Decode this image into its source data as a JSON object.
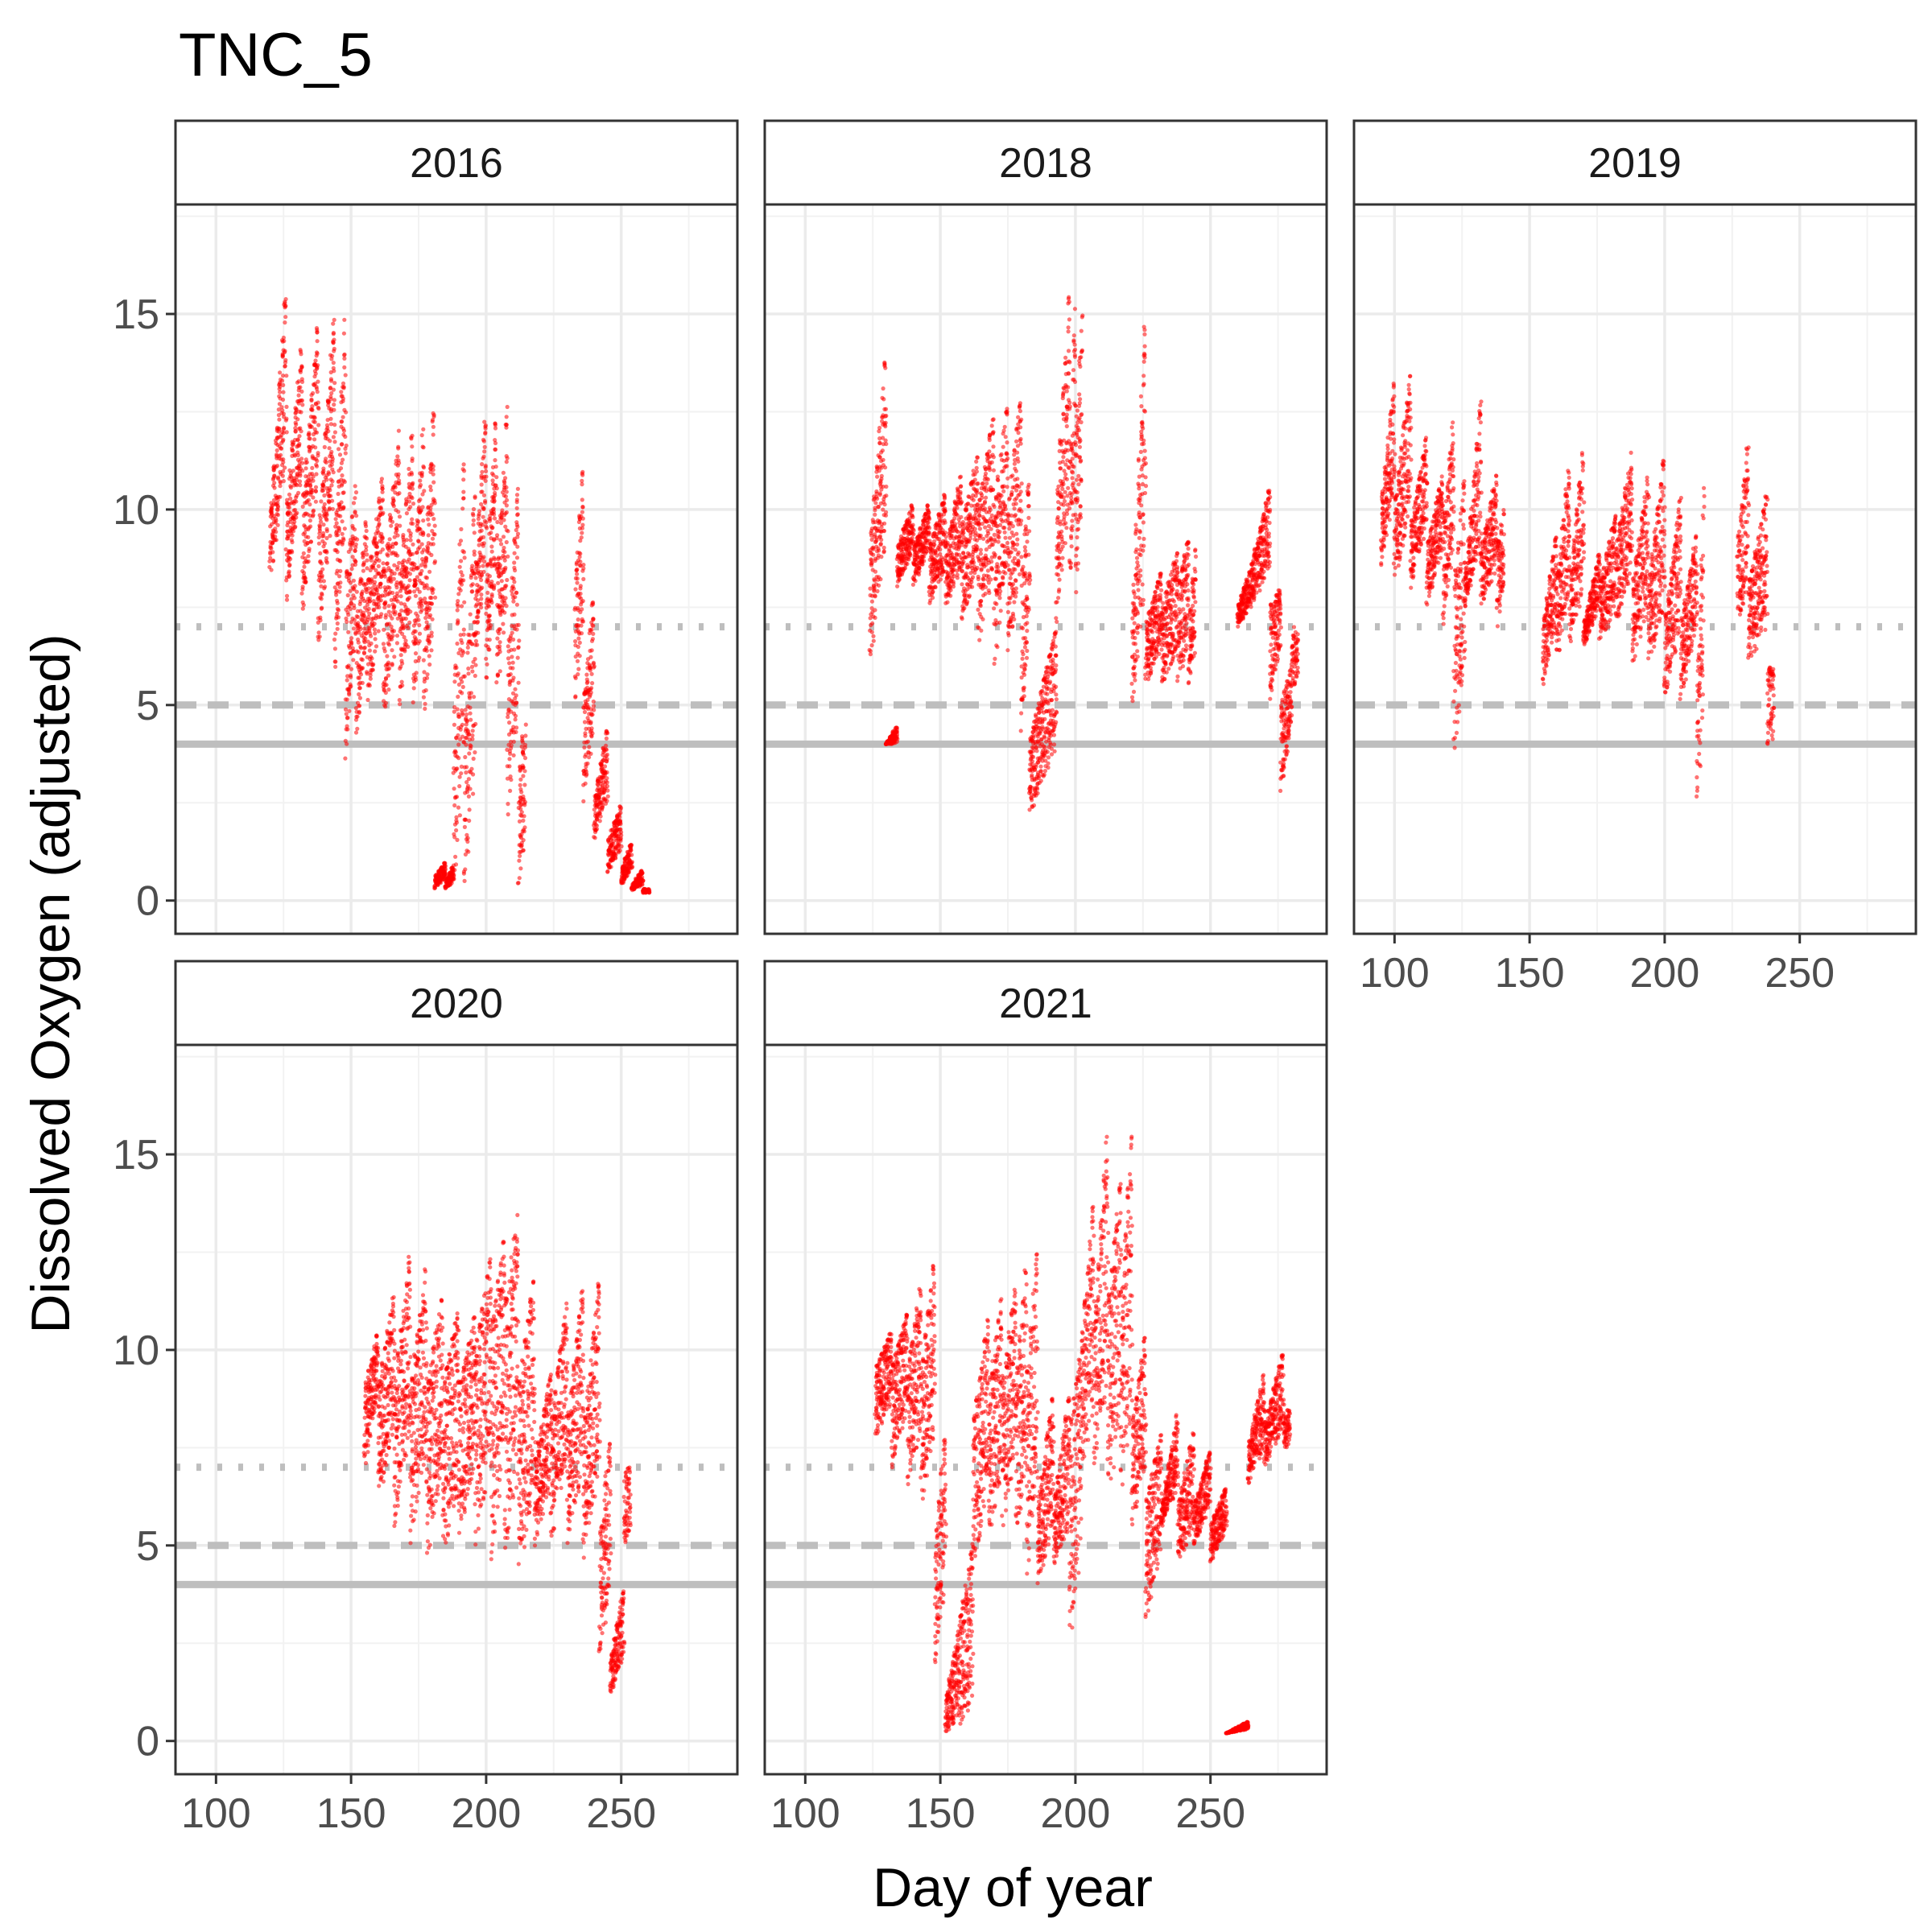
{
  "chart_data": {
    "type": "scatter",
    "title": "TNC_5",
    "xlabel": "Day of year",
    "ylabel": "Dissolved Oxygen (adjusted)",
    "xlim": [
      85,
      293
    ],
    "ylim": [
      -0.85,
      17.8
    ],
    "x_ticks": [
      100,
      150,
      200,
      250
    ],
    "x_tick_labels": [
      "100",
      "150",
      "200",
      "250"
    ],
    "y_ticks": [
      0,
      5,
      10,
      15
    ],
    "y_tick_labels": [
      "0",
      "5",
      "10",
      "15"
    ],
    "grid": true,
    "point_color": "#ff0000",
    "reference_lines": [
      {
        "value": 7,
        "style": "dotted",
        "color": "#bebebe"
      },
      {
        "value": 5,
        "style": "dashed",
        "color": "#bebebe"
      },
      {
        "value": 4,
        "style": "solid",
        "color": "#bebebe"
      }
    ],
    "layout": {
      "ncol": 3,
      "facet_by": "year"
    },
    "facets": [
      {
        "year": "2016",
        "segments": [
          [
            120,
            9.5,
            15.8,
            8.2,
            11
          ],
          [
            126,
            9.8,
            14.5,
            7.5,
            11
          ],
          [
            132,
            10,
            15,
            7,
            11
          ],
          [
            138,
            9.5,
            15.3,
            6.5,
            10.5
          ],
          [
            144,
            9,
            15.5,
            5.5,
            10
          ],
          [
            148,
            8,
            11,
            3.5,
            7
          ],
          [
            152,
            7,
            10,
            4,
            7
          ],
          [
            156,
            8,
            11,
            5,
            7.5
          ],
          [
            162,
            8,
            12.3,
            4.5,
            7
          ],
          [
            168,
            8,
            12.3,
            5,
            7.5
          ],
          [
            173,
            8,
            12.5,
            5,
            7.5
          ],
          [
            177,
            8,
            13,
            4.5,
            7
          ],
          [
            181,
            0.6,
            1,
            0.3,
            0.6
          ],
          [
            185,
            0.5,
            0.9,
            0.3,
            0.5
          ],
          [
            188,
            5,
            12.1,
            0.3,
            4
          ],
          [
            192,
            4,
            11,
            0.5,
            3
          ],
          [
            196,
            8,
            12.8,
            6,
            9
          ],
          [
            200,
            8,
            12.8,
            5.5,
            8.5
          ],
          [
            204,
            8,
            12.9,
            5,
            8
          ],
          [
            208,
            6,
            11,
            2,
            5
          ],
          [
            212,
            3,
            5,
            0.3,
            1.5
          ],
          [
            233,
            8,
            11.6,
            5,
            7
          ],
          [
            236,
            5,
            8,
            2.5,
            4.5
          ],
          [
            240,
            2.5,
            4.5,
            1.5,
            2.5
          ],
          [
            245,
            1.5,
            2.5,
            0.7,
            1.3
          ],
          [
            250,
            0.8,
            1.5,
            0.4,
            0.8
          ],
          [
            254,
            0.4,
            0.8,
            0.25,
            0.4
          ],
          [
            258,
            0.3,
            0.5,
            0.2,
            0.3
          ]
        ]
      },
      {
        "year": "2018",
        "segments": [
          [
            124,
            9,
            14.1,
            6,
            9
          ],
          [
            130,
            4,
            4.5,
            4,
            4
          ],
          [
            134,
            9,
            10.2,
            8,
            9
          ],
          [
            140,
            9,
            10.2,
            8,
            9
          ],
          [
            146,
            9,
            10.5,
            7.5,
            8.5
          ],
          [
            152,
            9,
            11,
            7.5,
            8.5
          ],
          [
            158,
            9.5,
            11.5,
            7,
            8.5
          ],
          [
            164,
            10,
            12.5,
            6.5,
            8.5
          ],
          [
            170,
            10,
            12.8,
            6,
            8.5
          ],
          [
            175,
            10,
            13,
            6,
            8.5
          ],
          [
            180,
            8,
            11,
            4,
            7
          ],
          [
            183,
            4,
            7,
            2,
            4
          ],
          [
            193,
            10,
            15.9,
            7,
            10
          ],
          [
            198,
            10,
            16,
            8,
            10.5
          ],
          [
            200,
            12,
            15,
            7.5,
            10
          ],
          [
            221,
            7,
            15.5,
            5,
            8
          ],
          [
            226,
            7,
            8.5,
            5.5,
            6.5
          ],
          [
            232,
            7.5,
            9,
            5.5,
            6.5
          ],
          [
            238,
            8,
            9.3,
            5.5,
            6.5
          ],
          [
            242,
            7,
            9,
            5.5,
            6.5
          ],
          [
            260,
            7.5,
            8.5,
            7,
            7.5
          ],
          [
            265,
            8.5,
            10.6,
            7.5,
            8.5
          ],
          [
            272,
            7.5,
            8,
            5,
            6.5
          ],
          [
            276,
            5,
            6,
            2.6,
            4.5
          ],
          [
            280,
            7,
            8.5,
            5.5,
            7
          ]
        ]
      },
      {
        "year": "2019",
        "segments": [
          [
            95,
            10,
            13.5,
            8.5,
            10.5
          ],
          [
            100,
            10,
            13.7,
            8,
            10
          ],
          [
            106,
            9.5,
            12,
            8,
            9.5
          ],
          [
            112,
            9,
            11,
            7.5,
            9
          ],
          [
            118,
            9.5,
            12.5,
            7,
            9
          ],
          [
            122,
            8,
            11,
            3.5,
            6
          ],
          [
            126,
            8,
            12.9,
            7.5,
            9
          ],
          [
            132,
            9,
            11,
            7.5,
            8.5
          ],
          [
            138,
            9,
            10,
            7,
            8
          ],
          [
            155,
            7,
            9.5,
            5.5,
            7
          ],
          [
            160,
            8,
            11.5,
            6,
            8
          ],
          [
            165,
            8,
            11.8,
            6.5,
            8
          ],
          [
            170,
            7,
            9,
            6.5,
            7.5
          ],
          [
            176,
            8,
            10,
            6.5,
            7.5
          ],
          [
            182,
            9,
            11.6,
            7,
            8.5
          ],
          [
            188,
            8,
            11,
            6,
            7.5
          ],
          [
            194,
            8,
            11.5,
            6,
            7.5
          ],
          [
            200,
            7,
            10.5,
            5,
            7
          ],
          [
            206,
            7,
            9.5,
            5,
            7
          ],
          [
            212,
            5,
            10.7,
            2.4,
            5
          ],
          [
            227,
            9,
            11.9,
            7,
            8
          ],
          [
            231,
            8,
            10.5,
            6,
            7
          ],
          [
            238,
            6,
            11.3,
            4,
            6
          ]
        ]
      },
      {
        "year": "2020",
        "segments": [
          [
            155,
            9,
            10.5,
            7,
            9
          ],
          [
            160,
            9,
            11.5,
            6,
            8
          ],
          [
            166,
            9,
            12.6,
            5.5,
            8
          ],
          [
            172,
            9,
            12.3,
            5,
            7.5
          ],
          [
            178,
            9,
            11.5,
            4.5,
            7
          ],
          [
            184,
            9,
            11.2,
            4.5,
            6.5
          ],
          [
            190,
            9,
            11,
            5,
            7
          ],
          [
            196,
            10,
            12.5,
            5,
            7
          ],
          [
            202,
            10.5,
            13,
            4.5,
            7
          ],
          [
            207,
            11,
            13.7,
            4.3,
            7
          ],
          [
            212,
            9,
            12,
            4,
            6.5
          ],
          [
            218,
            7,
            9.5,
            5,
            6.5
          ],
          [
            224,
            8,
            11.5,
            5,
            7
          ],
          [
            230,
            8,
            11.8,
            5,
            7
          ],
          [
            236,
            8,
            12,
            4.5,
            7
          ],
          [
            242,
            5,
            8,
            2,
            4
          ],
          [
            246,
            2,
            4,
            1.2,
            2
          ],
          [
            251,
            7,
            10.6,
            5,
            7
          ]
        ]
      },
      {
        "year": "2021",
        "segments": [
          [
            126,
            9.5,
            10.5,
            7.7,
            8.7
          ],
          [
            132,
            9.5,
            11,
            7,
            8.5
          ],
          [
            138,
            9.5,
            11.8,
            6.5,
            8
          ],
          [
            143,
            9.5,
            12.4,
            6,
            8
          ],
          [
            148,
            5,
            8,
            2,
            4
          ],
          [
            152,
            1,
            3,
            0.2,
            0.6
          ],
          [
            157,
            3,
            5,
            0.3,
            1
          ],
          [
            162,
            8,
            11,
            4,
            7
          ],
          [
            168,
            9,
            11.5,
            5,
            7
          ],
          [
            173,
            9,
            11.8,
            5.5,
            7.5
          ],
          [
            178,
            9,
            12.5,
            5,
            7
          ],
          [
            182,
            9,
            12.9,
            4,
            6.5
          ],
          [
            186,
            6,
            9,
            4,
            5.5
          ],
          [
            192,
            6,
            9,
            4.5,
            5.5
          ],
          [
            198,
            8,
            10,
            2.2,
            5
          ],
          [
            202,
            10,
            14,
            6.5,
            8.5
          ],
          [
            207,
            10.5,
            16,
            7,
            9
          ],
          [
            212,
            11,
            14.5,
            6,
            8.5
          ],
          [
            217,
            11,
            15.9,
            6,
            8.5
          ],
          [
            221,
            8,
            10.5,
            5.5,
            7
          ],
          [
            226,
            6,
            8,
            3,
            5
          ],
          [
            232,
            6,
            8.5,
            5.5,
            6.5
          ],
          [
            238,
            6,
            8,
            4.5,
            5.5
          ],
          [
            244,
            6,
            7.5,
            5,
            6
          ],
          [
            250,
            5.5,
            6.5,
            4.5,
            5.5
          ],
          [
            256,
            0.2,
            0.5,
            0.2,
            0.3
          ],
          [
            264,
            7.5,
            9.5,
            6.5,
            7.5
          ],
          [
            270,
            8,
            10,
            7,
            8
          ],
          [
            277,
            8.5,
            11.6,
            7.5,
            8.5
          ]
        ]
      }
    ]
  }
}
